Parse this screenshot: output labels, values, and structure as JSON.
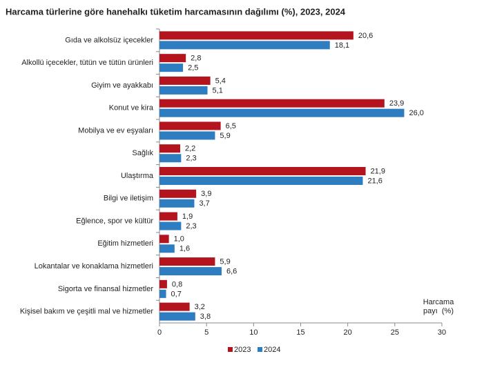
{
  "chart_data": {
    "type": "hbar",
    "title": "Harcama türlerine göre hanehalkı tüketim harcamasının dağılımı (%), 2023, 2024",
    "categories": [
      "Gıda ve alkolsüz içecekler",
      "Alkollü içecekler, tütün ve tütün ürünleri",
      "Giyim ve ayakkabı",
      "Konut ve kira",
      "Mobilya ve ev eşyaları",
      "Sağlık",
      "Ulaştırma",
      "Bilgi ve iletişim",
      "Eğlence, spor ve kültür",
      "Eğitim hizmetleri",
      "Lokantalar ve konaklama hizmetleri",
      "Sigorta ve finansal hizmetler",
      "Kişisel bakım ve çeşitli mal ve hizmetler"
    ],
    "series": [
      {
        "name": "2023",
        "color": "#b3141d",
        "values": [
          20.6,
          2.8,
          5.4,
          23.9,
          6.5,
          2.2,
          21.9,
          3.9,
          1.9,
          1.0,
          5.9,
          0.8,
          3.2
        ],
        "value_labels": [
          "20,6",
          "2,8",
          "5,4",
          "23,9",
          "6,5",
          "2,2",
          "21,9",
          "3,9",
          "1,9",
          "1,0",
          "5,9",
          "0,8",
          "3,2"
        ]
      },
      {
        "name": "2024",
        "color": "#2e7dc0",
        "values": [
          18.1,
          2.5,
          5.1,
          26.0,
          5.9,
          2.3,
          21.6,
          3.7,
          2.3,
          1.6,
          6.6,
          0.7,
          3.8
        ],
        "value_labels": [
          "18,1",
          "2,5",
          "5,1",
          "26,0",
          "5,9",
          "2,3",
          "21,6",
          "3,7",
          "2,3",
          "1,6",
          "6,6",
          "0,7",
          "3,8"
        ]
      }
    ],
    "x_label": [
      "Harcama",
      "payı  (%)"
    ],
    "xlim": [
      0,
      30
    ],
    "xticks": [
      0,
      5,
      10,
      15,
      20,
      25,
      30
    ]
  }
}
